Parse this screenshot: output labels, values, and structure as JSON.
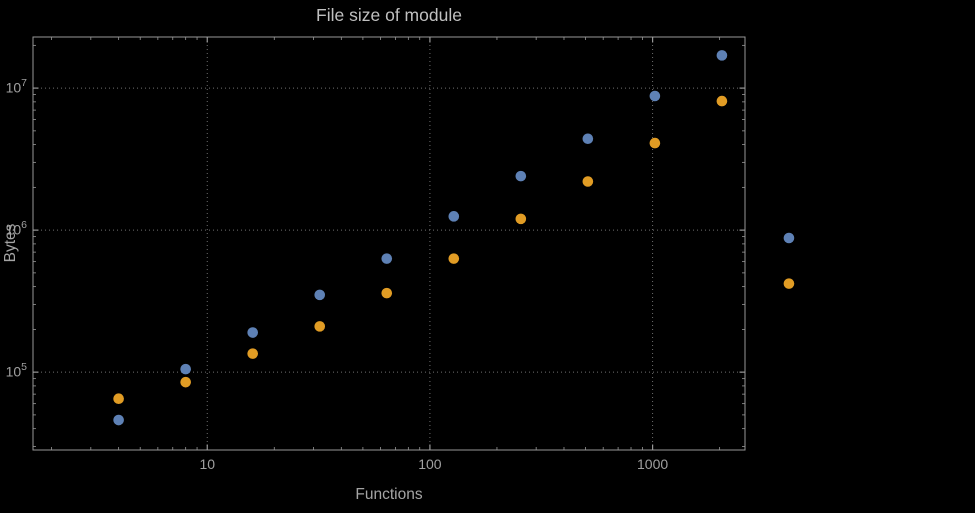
{
  "page": {
    "background": "#000000"
  },
  "chart_data": {
    "type": "scatter",
    "title": "File size of module",
    "xlabel": "Functions",
    "ylabel": "Bytes",
    "x_scale": "log",
    "y_scale": "log",
    "grid": "dotted-major-decades",
    "legend": "none",
    "xlim": [
      1.65,
      2600
    ],
    "ylim": [
      28300,
      22900000
    ],
    "x_ticks": [
      {
        "value": 10,
        "label": "10"
      },
      {
        "value": 100,
        "label": "100"
      },
      {
        "value": 1000,
        "label": "1000"
      }
    ],
    "y_ticks": [
      {
        "value": 100000,
        "base": "10",
        "exp": "5"
      },
      {
        "value": 1000000,
        "base": "10",
        "exp": "6"
      },
      {
        "value": 10000000,
        "base": "10",
        "exp": "7"
      }
    ],
    "x": [
      4,
      8,
      16,
      32,
      64,
      128,
      256,
      512,
      1024,
      2048,
      4096
    ],
    "series": [
      {
        "name": "blue",
        "color": "#5E81B5",
        "values": [
          46000,
          105000,
          190000,
          350000,
          630000,
          1250000,
          2400000,
          4400000,
          8800000,
          17000000,
          880000
        ]
      },
      {
        "name": "orange",
        "color": "#E19C24",
        "values": [
          65000,
          85000,
          135000,
          210000,
          360000,
          630000,
          1200000,
          2200000,
          4100000,
          8100000,
          420000
        ]
      }
    ],
    "colors": {
      "background": "#000000",
      "frame": "#989898",
      "grid": "#6f6f6f",
      "tick_label": "#a0a0a0",
      "axis_label": "#a4a4a4",
      "title": "#c0c0c0"
    }
  }
}
